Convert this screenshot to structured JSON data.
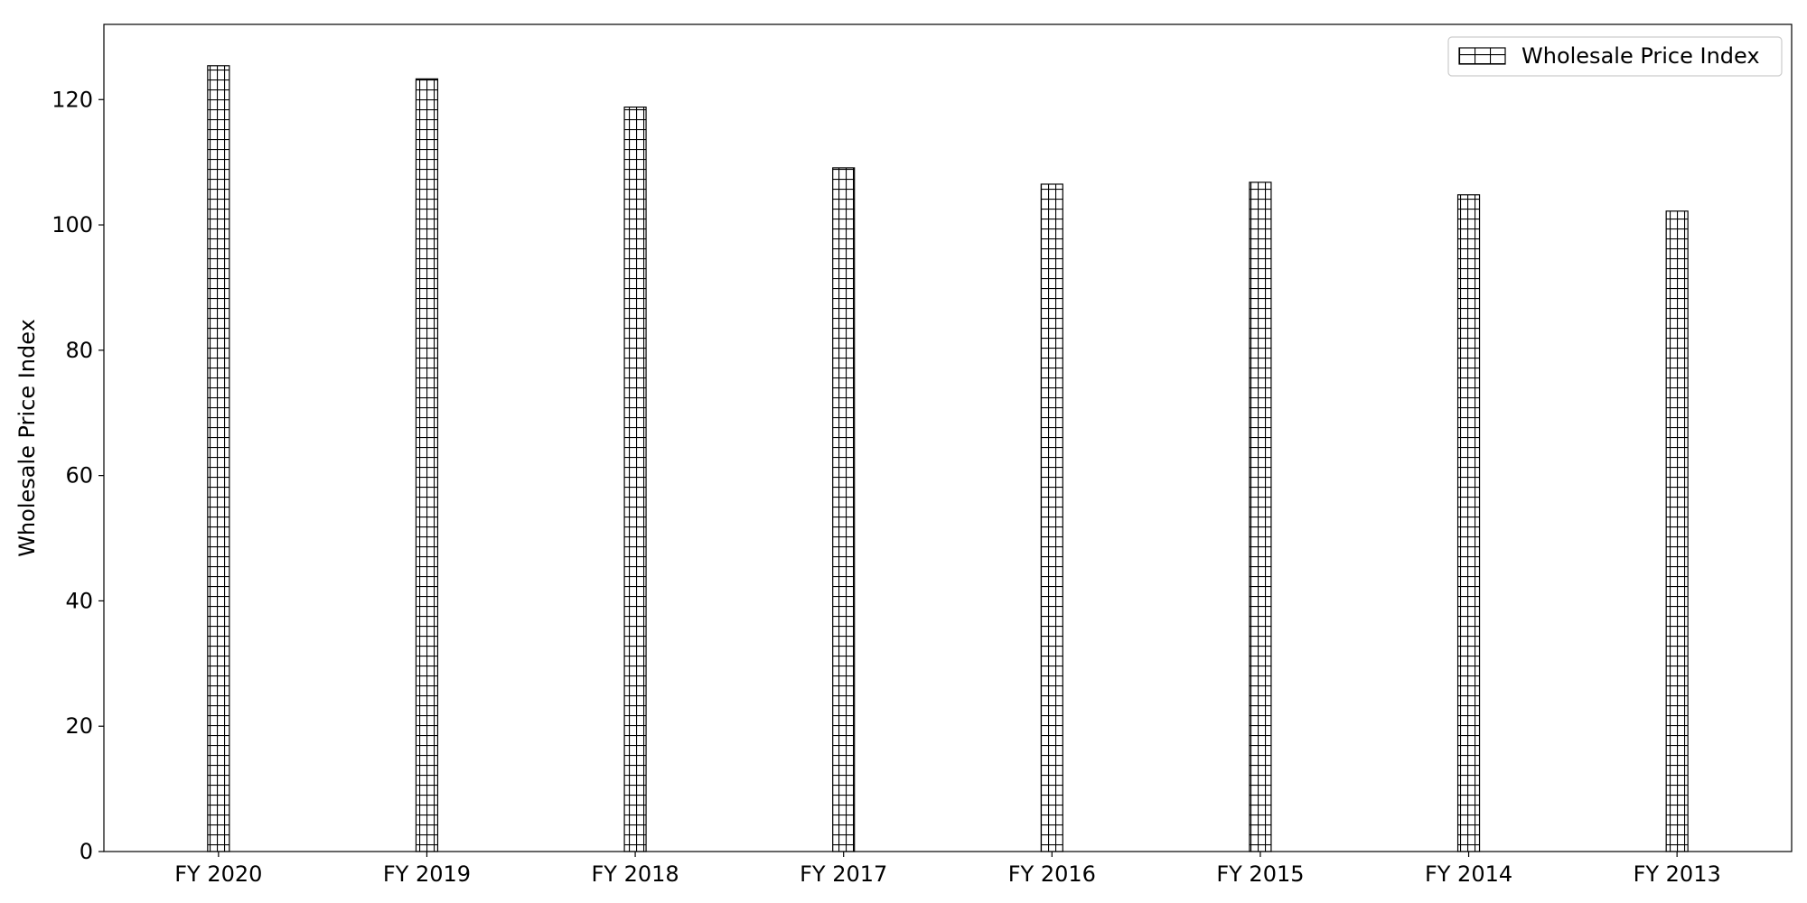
{
  "chart_data": {
    "type": "bar",
    "title": "",
    "xlabel": "",
    "ylabel": "Wholesale Price Index",
    "categories": [
      "FY 2020",
      "FY 2019",
      "FY 2018",
      "FY 2017",
      "FY 2016",
      "FY 2015",
      "FY 2014",
      "FY 2013"
    ],
    "series": [
      {
        "name": "Wholesale Price Index",
        "values": [
          125.4,
          123.3,
          118.8,
          109.1,
          106.5,
          106.8,
          104.8,
          102.2
        ],
        "fill": "#ffffff",
        "edge_color": "#000000",
        "hatch": "grid"
      }
    ],
    "ylim": [
      0,
      132
    ],
    "yticks": [
      0,
      20,
      40,
      60,
      80,
      100,
      120
    ],
    "grid": false,
    "legend_position": "top-right"
  }
}
